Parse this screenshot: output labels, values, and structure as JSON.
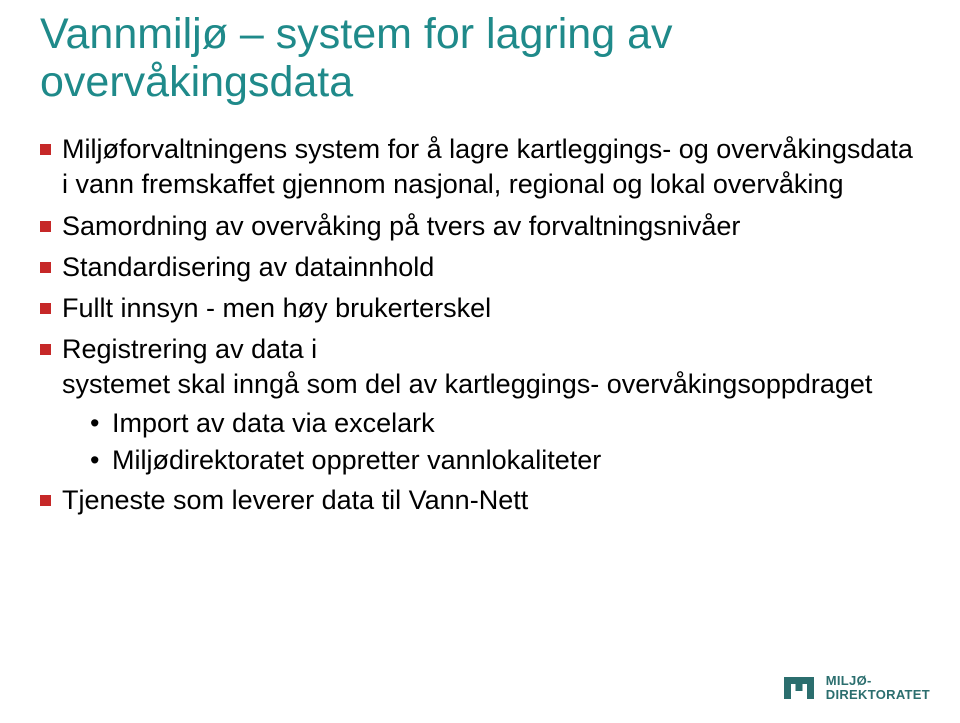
{
  "colors": {
    "title": "#1f8a8a",
    "bullet_square": "#c62828",
    "sub_bullet": "#000000",
    "body_text": "#000000",
    "background": "#ffffff",
    "logo": "#2b6e6e"
  },
  "title": "Vannmiljø – system for lagring av overvåkingsdata",
  "bullets": [
    {
      "text": "Miljøforvaltningens system for å lagre kartleggings- og overvåkingsdata i vann fremskaffet gjennom nasjonal, regional og lokal overvåking"
    },
    {
      "text": "Samordning av overvåking på tvers av forvaltningsnivåer"
    },
    {
      "text": "Standardisering av datainnhold"
    },
    {
      "text": "Fullt innsyn  - men høy brukerterskel"
    },
    {
      "text": "Registrering av data i\nsystemet skal inngå som del av kartleggings- overvåkingsoppdraget",
      "sub": [
        "Import av data via excelark",
        "Miljødirektoratet oppretter vannlokaliteter"
      ]
    },
    {
      "text": "Tjeneste som leverer data til Vann-Nett"
    }
  ],
  "logo": {
    "line1": "MILJØ-",
    "line2": "DIREKTORATET"
  }
}
